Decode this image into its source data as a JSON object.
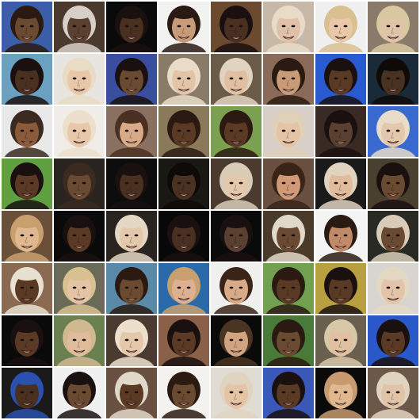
{
  "grid": {
    "rows": 8,
    "cols": 8,
    "tiles": [
      {
        "bg": "#3a5fa8",
        "skin": "#6b4a32",
        "hair": "#2a1a12"
      },
      {
        "bg": "#4a3a2e",
        "skin": "#5a4030",
        "hair": "#d8d0c8"
      },
      {
        "bg": "#0a0a0a",
        "skin": "#4a3020",
        "hair": "#1a1010"
      },
      {
        "bg": "#f2f2f0",
        "skin": "#c79a7a",
        "hair": "#2a1a14"
      },
      {
        "bg": "#6b4a30",
        "skin": "#4a3020",
        "hair": "#1a1010"
      },
      {
        "bg": "#c8b8a8",
        "skin": "#e0c0a8",
        "hair": "#e8dcc8"
      },
      {
        "bg": "#f0f0f0",
        "skin": "#e8c8a8",
        "hair": "#d8c090"
      },
      {
        "bg": "#8a7a6a",
        "skin": "#e0c4a8",
        "hair": "#d8c8a0"
      },
      {
        "bg": "#6aa0c0",
        "skin": "#4a3020",
        "hair": "#1a1010"
      },
      {
        "bg": "#e8e4e0",
        "skin": "#e8c8a8",
        "hair": "#e8dcc4"
      },
      {
        "bg": "#3a4ea0",
        "skin": "#6a4a30",
        "hair": "#1a1010"
      },
      {
        "bg": "#8a7a68",
        "skin": "#e4c4a8",
        "hair": "#e8dcc8"
      },
      {
        "bg": "#6a5a48",
        "skin": "#e0c0a0",
        "hair": "#e0d4c0"
      },
      {
        "bg": "#8a6a58",
        "skin": "#c89a78",
        "hair": "#2a1a12"
      },
      {
        "bg": "#2a5ad0",
        "skin": "#5a3a24",
        "hair": "#1a1010"
      },
      {
        "bg": "#1a2a38",
        "skin": "#4a3222",
        "hair": "#0e0a08"
      },
      {
        "bg": "#e8e8e8",
        "skin": "#8a5a3a",
        "hair": "#3a2a20"
      },
      {
        "bg": "#f0ece8",
        "skin": "#e8c8a8",
        "hair": "#ece0cc"
      },
      {
        "bg": "#8a7060",
        "skin": "#d8aa88",
        "hair": "#4a3022"
      },
      {
        "bg": "#8a7a5a",
        "skin": "#5a3a24",
        "hair": "#2a1a12"
      },
      {
        "bg": "#7aa050",
        "skin": "#5a3a24",
        "hair": "#2a1a12"
      },
      {
        "bg": "#d8d0c8",
        "skin": "#e4c4a4",
        "hair": "#e0d0b8"
      },
      {
        "bg": "#3a2a24",
        "skin": "#5a4030",
        "hair": "#1a1010"
      },
      {
        "bg": "#3a6ad0",
        "skin": "#e4c8ac",
        "hair": "#e8dcc8"
      },
      {
        "bg": "#60a040",
        "skin": "#5a3a24",
        "hair": "#1a1010"
      },
      {
        "bg": "#2a2420",
        "skin": "#6a4a30",
        "hair": "#3a2a20"
      },
      {
        "bg": "#0c0c0c",
        "skin": "#4a3020",
        "hair": "#1a1010"
      },
      {
        "bg": "#1a1814",
        "skin": "#4a3222",
        "hair": "#0e0a08"
      },
      {
        "bg": "#4a3a30",
        "skin": "#e4c8ac",
        "hair": "#d8ccb8"
      },
      {
        "bg": "#6a5040",
        "skin": "#d09a78",
        "hair": "#3a2418"
      },
      {
        "bg": "#1a1a1a",
        "skin": "#e0bc9c",
        "hair": "#e0d4c0"
      },
      {
        "bg": "#4a4030",
        "skin": "#6a4a30",
        "hair": "#1a1010"
      },
      {
        "bg": "#6a5038",
        "skin": "#e0b890",
        "hair": "#c8a070"
      },
      {
        "bg": "#0a0a0a",
        "skin": "#5a3a24",
        "hair": "#1a1010"
      },
      {
        "bg": "#2a2420",
        "skin": "#e4c8ac",
        "hair": "#e4d8c4"
      },
      {
        "bg": "#080808",
        "skin": "#4a3020",
        "hair": "#1a1010"
      },
      {
        "bg": "#0a0a0a",
        "skin": "#5a4030",
        "hair": "#1a1010"
      },
      {
        "bg": "#4a3a2a",
        "skin": "#6a4a30",
        "hair": "#e0d8c8"
      },
      {
        "bg": "#f4f4f4",
        "skin": "#c08a68",
        "hair": "#2a1a14"
      },
      {
        "bg": "#2a2a24",
        "skin": "#6a4a30",
        "hair": "#d8ccb8"
      },
      {
        "bg": "#8a6a50",
        "skin": "#5a3a24",
        "hair": "#e8e0d0"
      },
      {
        "bg": "#6a6a58",
        "skin": "#e4c4a4",
        "hair": "#d8c090"
      },
      {
        "bg": "#5a8aa8",
        "skin": "#6a4a30",
        "hair": "#2a1a12"
      },
      {
        "bg": "#2a6aa8",
        "skin": "#dcb090",
        "hair": "#c8a070"
      },
      {
        "bg": "#f0f0ee",
        "skin": "#d8aa88",
        "hair": "#3a2418"
      },
      {
        "bg": "#70a050",
        "skin": "#5a3a24",
        "hair": "#2a1a12"
      },
      {
        "bg": "#b8a040",
        "skin": "#5a3a24",
        "hair": "#1a1010"
      },
      {
        "bg": "#d8d4d0",
        "skin": "#e4c4a8",
        "hair": "#e4d8c4"
      },
      {
        "bg": "#0a0a0a",
        "skin": "#5a3a24",
        "hair": "#1a1010"
      },
      {
        "bg": "#6a8050",
        "skin": "#e0bc9c",
        "hair": "#d0b890"
      },
      {
        "bg": "#4a3a30",
        "skin": "#e4c8ac",
        "hair": "#ece0cc"
      },
      {
        "bg": "#8a6048",
        "skin": "#5a3a24",
        "hair": "#1a1010"
      },
      {
        "bg": "#0a0a0a",
        "skin": "#d0a480",
        "hair": "#4a3422"
      },
      {
        "bg": "#4a7a3a",
        "skin": "#6a4a30",
        "hair": "#2a1a12"
      },
      {
        "bg": "#6a6050",
        "skin": "#e0c0a0",
        "hair": "#d8c8a8"
      },
      {
        "bg": "#2a58c8",
        "skin": "#5a3a24",
        "hair": "#1a1010"
      },
      {
        "bg": "#1a1a1a",
        "skin": "#4a3020",
        "hair": "#2a50b0"
      },
      {
        "bg": "#f0f0f0",
        "skin": "#6a4a30",
        "hair": "#1a1010"
      },
      {
        "bg": "#6a5040",
        "skin": "#5a3a24",
        "hair": "#e0d8c8"
      },
      {
        "bg": "#f4f2ee",
        "skin": "#6a4a30",
        "hair": "#2a1a12"
      },
      {
        "bg": "#e0dcd4",
        "skin": "#e4c4a4",
        "hair": "#e0d4c0"
      },
      {
        "bg": "#3a58b8",
        "skin": "#5a3a24",
        "hair": "#1a1010"
      },
      {
        "bg": "#0a0a0a",
        "skin": "#e0b890",
        "hair": "#c89a70"
      },
      {
        "bg": "#6a5848",
        "skin": "#e0c4a8",
        "hair": "#e0d4c0"
      }
    ]
  }
}
